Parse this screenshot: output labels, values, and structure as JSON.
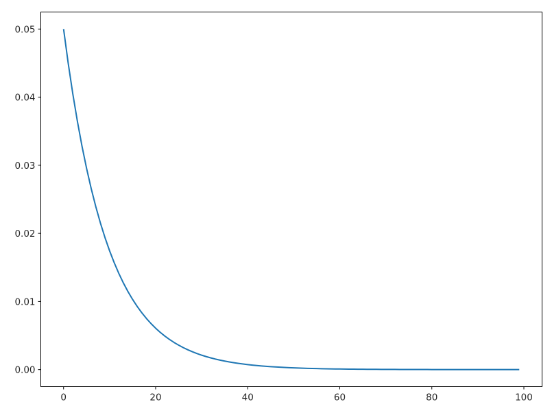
{
  "chart_data": {
    "type": "line",
    "title": "",
    "xlabel": "",
    "ylabel": "",
    "xlim": [
      -4.95,
      103.95
    ],
    "ylim": [
      -0.0025,
      0.0525
    ],
    "grid": false,
    "x_ticks": [
      "0",
      "20",
      "40",
      "60",
      "80",
      "100"
    ],
    "x_tick_values": [
      0,
      20,
      40,
      60,
      80,
      100
    ],
    "y_ticks": [
      "0.00",
      "0.01",
      "0.02",
      "0.03",
      "0.04",
      "0.05"
    ],
    "y_tick_values": [
      0,
      0.01,
      0.02,
      0.03,
      0.04,
      0.05
    ],
    "series": [
      {
        "color": "#1f77b4",
        "x_start": 0,
        "x_step": 1,
        "values": [
          0.05,
          0.045,
          0.0405,
          0.03645,
          0.032805,
          0.029525,
          0.026572,
          0.023915,
          0.021523,
          0.019371,
          0.017434,
          0.015691,
          0.014121,
          0.012709,
          0.011438,
          0.010295,
          0.009265,
          0.008339,
          0.007505,
          0.006754,
          0.006079,
          0.005471,
          0.004924,
          0.004431,
          0.003988,
          0.003589,
          0.003231,
          0.002907,
          0.002617,
          0.002355,
          0.00212,
          0.001908,
          0.001717,
          0.001545,
          0.001391,
          0.001252,
          0.001126,
          0.001014,
          0.000912,
          0.000821,
          0.000739,
          0.000665,
          0.000599,
          0.000539,
          0.000485,
          0.000436,
          0.000393,
          0.000353,
          0.000318,
          0.000286,
          0.000258,
          0.000232,
          0.000209,
          0.000188,
          0.000169,
          0.000152,
          0.000137,
          0.000123,
          0.000111,
          0.0001,
          9e-05,
          8.1e-05,
          7.3e-05,
          6.6e-05,
          5.9e-05,
          5.3e-05,
          4.8e-05,
          4.3e-05,
          3.9e-05,
          3.5e-05,
          3.1e-05,
          2.8e-05,
          2.5e-05,
          2.3e-05,
          2.1e-05,
          1.8e-05,
          1.7e-05,
          1.5e-05,
          1.3e-05,
          1.2e-05,
          1.1e-05,
          1e-05,
          9e-06,
          8e-06,
          7e-06,
          6e-06,
          6e-06,
          5e-06,
          5e-06,
          4e-06,
          4e-06,
          3e-06,
          3e-06,
          3e-06,
          3e-06,
          2e-06,
          2e-06,
          2e-06,
          2e-06,
          2e-06
        ]
      }
    ]
  }
}
